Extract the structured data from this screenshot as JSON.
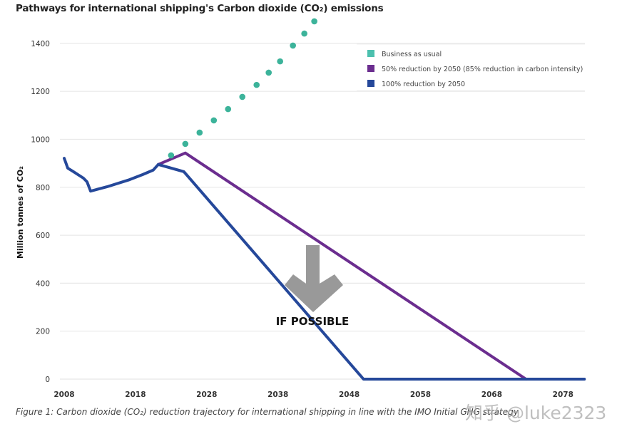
{
  "chart_data": {
    "type": "line",
    "title": "Pathways for international shipping's Carbon dioxide (CO₂) emissions",
    "xlabel": "",
    "ylabel": "Million tonnes of CO₂",
    "xlim": [
      2008,
      2082
    ],
    "ylim": [
      0,
      1500
    ],
    "x_ticks": [
      2008,
      2018,
      2028,
      2038,
      2048,
      2058,
      2068,
      2078
    ],
    "y_ticks": [
      0,
      200,
      400,
      600,
      800,
      1000,
      1200,
      1400
    ],
    "grid": "horizontal",
    "legend_position": "top-right",
    "series": [
      {
        "name": "Business as usual",
        "color": "#3cb39a",
        "style": "dotted-markers",
        "points": [
          [
            2023,
            933
          ],
          [
            2025,
            981
          ],
          [
            2027,
            1028
          ],
          [
            2029,
            1079
          ],
          [
            2031,
            1126
          ],
          [
            2033,
            1177
          ],
          [
            2035,
            1227
          ],
          [
            2036.7,
            1278
          ],
          [
            2038.3,
            1325
          ],
          [
            2040.1,
            1391
          ],
          [
            2041.7,
            1441
          ],
          [
            2043.1,
            1492
          ]
        ]
      },
      {
        "name": "50% reduction by 2050 (85% reduction in carbon intensity)",
        "color": "#6b2d8f",
        "style": "line",
        "points": [
          [
            2021.2,
            895
          ],
          [
            2025,
            943
          ],
          [
            2072.8,
            0
          ]
        ]
      },
      {
        "name": "100% reduction by 2050",
        "color": "#25489a",
        "style": "line",
        "points": [
          [
            2008,
            921
          ],
          [
            2008.5,
            880
          ],
          [
            2009.3,
            865
          ],
          [
            2010.7,
            838
          ],
          [
            2011.2,
            823
          ],
          [
            2011.7,
            784
          ],
          [
            2014,
            802
          ],
          [
            2017,
            830
          ],
          [
            2019,
            853
          ],
          [
            2020.5,
            872
          ],
          [
            2021.2,
            895
          ],
          [
            2024.8,
            865
          ],
          [
            2050,
            0
          ],
          [
            2081,
            0
          ]
        ]
      }
    ],
    "annotations": [
      {
        "text": "IF POSSIBLE",
        "type": "label"
      },
      {
        "text": "",
        "type": "down-arrow",
        "color": "#999999"
      }
    ]
  },
  "caption": "Figure 1: Carbon dioxide (CO₂) reduction trajectory for international shipping in line with the IMO Initial GHG strategy",
  "watermark": "知乎 @luke2323"
}
